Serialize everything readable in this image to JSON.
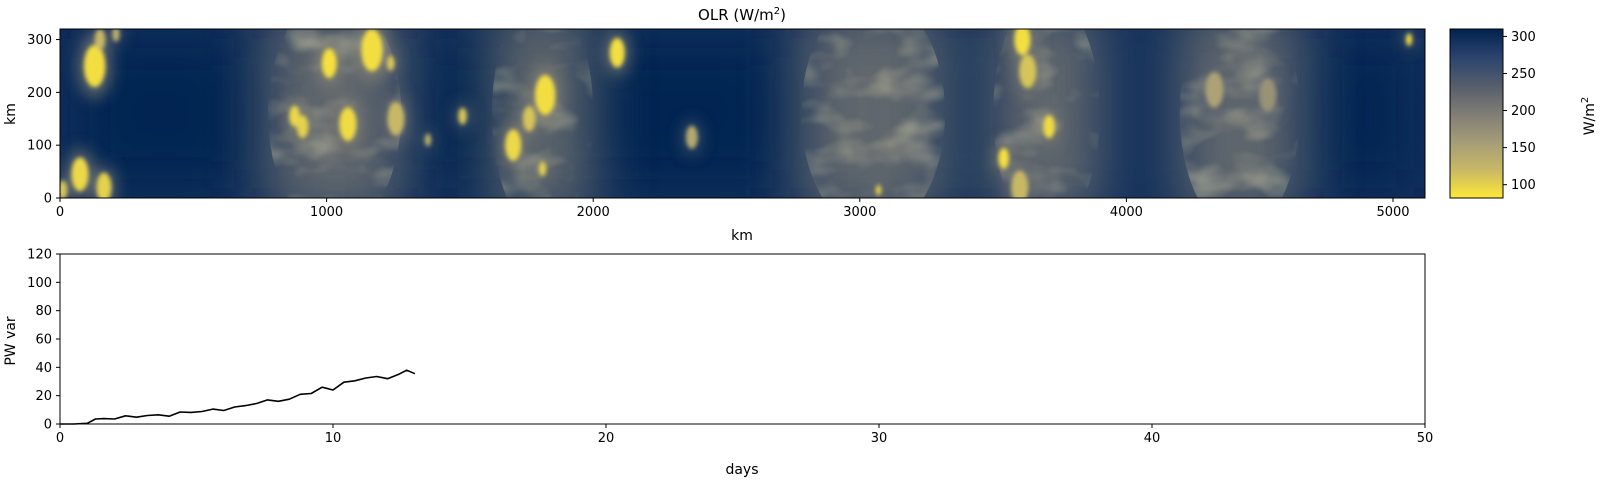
{
  "chart_data": [
    {
      "type": "heatmap",
      "title": "OLR (W/m",
      "title_superscript": "2",
      "title_suffix": ")",
      "xlabel": "km",
      "ylabel": "km",
      "xlim": [
        0,
        5120
      ],
      "ylim": [
        0,
        320
      ],
      "x_ticks": [
        0,
        1000,
        2000,
        3000,
        4000,
        5000
      ],
      "y_ticks": [
        0,
        100,
        200,
        300
      ],
      "colorbar": {
        "label": "W/m",
        "label_superscript": "2",
        "range": [
          82,
          310
        ],
        "ticks": [
          100,
          150,
          200,
          250,
          300
        ],
        "colormap": "cividis",
        "colors": [
          "#fee838",
          "#c8b866",
          "#a49c78",
          "#7f7c75",
          "#555d6c",
          "#2b446e",
          "#00224e"
        ]
      },
      "field": {
        "background_olr": 295,
        "clear_bands_km": [
          [
            0,
            760
          ],
          [
            1300,
            2780
          ],
          [
            3300,
            3500
          ],
          [
            4700,
            5120
          ]
        ],
        "convective_bands_km": [
          [
            780,
            1280
          ],
          [
            1620,
            2000
          ],
          [
            2780,
            3320
          ],
          [
            3500,
            3900
          ],
          [
            4200,
            4650
          ]
        ],
        "cells": [
          {
            "x": 130,
            "y": 250,
            "r": 40,
            "olr": 90
          },
          {
            "x": 75,
            "y": 45,
            "r": 32,
            "olr": 95
          },
          {
            "x": 165,
            "y": 20,
            "r": 28,
            "olr": 100
          },
          {
            "x": 10,
            "y": 15,
            "r": 18,
            "olr": 110
          },
          {
            "x": 150,
            "y": 300,
            "r": 20,
            "olr": 120
          },
          {
            "x": 210,
            "y": 310,
            "r": 14,
            "olr": 130
          },
          {
            "x": 1010,
            "y": 255,
            "r": 28,
            "olr": 88
          },
          {
            "x": 1170,
            "y": 280,
            "r": 40,
            "olr": 90
          },
          {
            "x": 1080,
            "y": 140,
            "r": 32,
            "olr": 92
          },
          {
            "x": 880,
            "y": 155,
            "r": 20,
            "olr": 95
          },
          {
            "x": 910,
            "y": 135,
            "r": 22,
            "olr": 100
          },
          {
            "x": 1260,
            "y": 150,
            "r": 32,
            "olr": 120
          },
          {
            "x": 1240,
            "y": 255,
            "r": 14,
            "olr": 105
          },
          {
            "x": 1510,
            "y": 155,
            "r": 16,
            "olr": 110
          },
          {
            "x": 1380,
            "y": 110,
            "r": 12,
            "olr": 130
          },
          {
            "x": 1820,
            "y": 195,
            "r": 38,
            "olr": 90
          },
          {
            "x": 1700,
            "y": 100,
            "r": 30,
            "olr": 95
          },
          {
            "x": 1760,
            "y": 150,
            "r": 24,
            "olr": 110
          },
          {
            "x": 1810,
            "y": 55,
            "r": 14,
            "olr": 100
          },
          {
            "x": 2090,
            "y": 275,
            "r": 28,
            "olr": 90
          },
          {
            "x": 2370,
            "y": 115,
            "r": 22,
            "olr": 140
          },
          {
            "x": 3070,
            "y": 15,
            "r": 10,
            "olr": 95
          },
          {
            "x": 3610,
            "y": 300,
            "r": 30,
            "olr": 90
          },
          {
            "x": 3630,
            "y": 240,
            "r": 32,
            "olr": 110
          },
          {
            "x": 3540,
            "y": 75,
            "r": 20,
            "olr": 88
          },
          {
            "x": 3600,
            "y": 20,
            "r": 32,
            "olr": 120
          },
          {
            "x": 3710,
            "y": 135,
            "r": 22,
            "olr": 92
          },
          {
            "x": 4330,
            "y": 205,
            "r": 34,
            "olr": 150
          },
          {
            "x": 4530,
            "y": 195,
            "r": 32,
            "olr": 170
          },
          {
            "x": 5060,
            "y": 300,
            "r": 12,
            "olr": 90
          }
        ]
      }
    },
    {
      "type": "line",
      "xlabel": "days",
      "ylabel": "PW var",
      "xlim": [
        0,
        50
      ],
      "ylim": [
        0,
        120
      ],
      "x_ticks": [
        0,
        10,
        20,
        30,
        40,
        50
      ],
      "y_ticks": [
        0,
        20,
        40,
        60,
        80,
        100,
        120
      ],
      "series": [
        {
          "color": "#000000",
          "x": [
            0,
            0.5,
            1.0,
            1.3,
            1.6,
            2.0,
            2.4,
            2.8,
            3.2,
            3.6,
            4.0,
            4.4,
            4.8,
            5.2,
            5.6,
            6.0,
            6.4,
            6.8,
            7.2,
            7.6,
            8.0,
            8.4,
            8.8,
            9.2,
            9.6,
            10.0,
            10.4,
            10.8,
            11.2,
            11.6,
            12.0,
            12.4,
            12.7,
            13.0
          ],
          "y": [
            0,
            0,
            0.5,
            3.5,
            3.8,
            3.5,
            5.8,
            4.8,
            6.0,
            6.5,
            5.5,
            8.5,
            8.2,
            8.8,
            10.5,
            9.5,
            12.0,
            13.0,
            14.5,
            17.0,
            16.0,
            17.5,
            21.0,
            21.5,
            26.0,
            24.0,
            29.5,
            30.5,
            32.5,
            33.5,
            32.0,
            35.0,
            38.0,
            35.5
          ]
        }
      ]
    }
  ]
}
